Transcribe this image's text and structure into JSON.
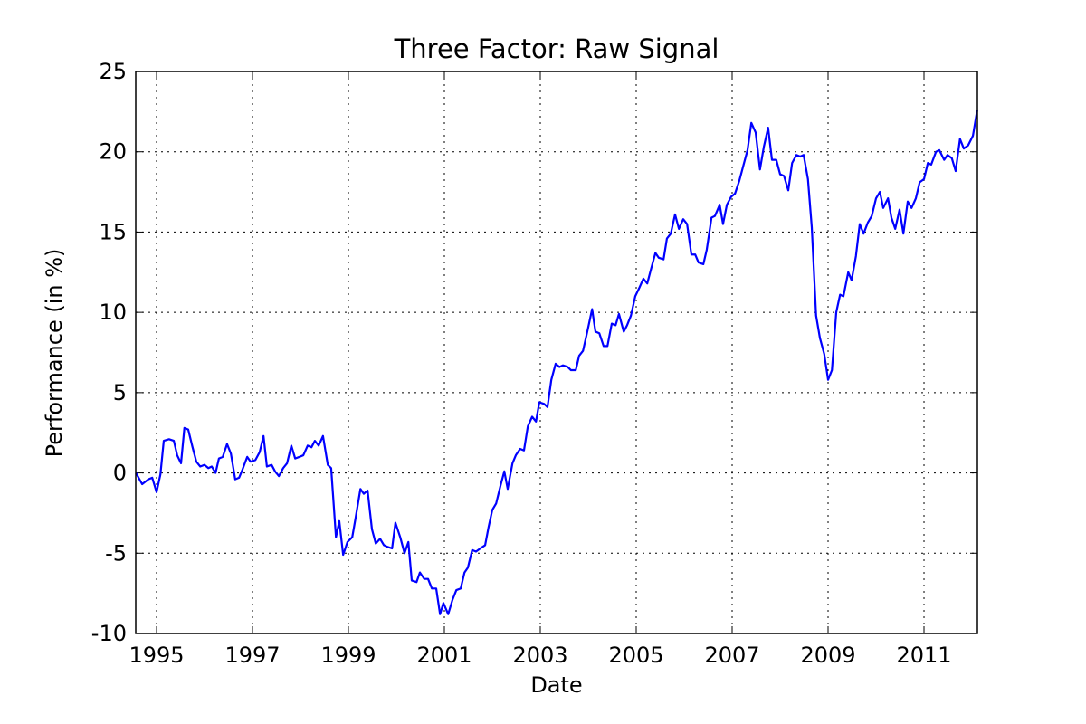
{
  "chart_data": {
    "type": "line",
    "title": "Three Factor: Raw Signal",
    "x_label": "Date",
    "y_label": "Performance (in %)",
    "x": [
      1994.57,
      1994.7,
      1994.83,
      1994.91,
      1995.0,
      1995.08,
      1995.15,
      1995.26,
      1995.36,
      1995.43,
      1995.51,
      1995.58,
      1995.66,
      1995.75,
      1995.83,
      1995.91,
      1996.0,
      1996.08,
      1996.15,
      1996.23,
      1996.3,
      1996.38,
      1996.47,
      1996.55,
      1996.64,
      1996.72,
      1996.79,
      1996.89,
      1996.96,
      1997.06,
      1997.15,
      1997.23,
      1997.3,
      1997.4,
      1997.47,
      1997.55,
      1997.64,
      1997.72,
      1997.81,
      1997.89,
      1997.98,
      1998.06,
      1998.15,
      1998.23,
      1998.3,
      1998.38,
      1998.47,
      1998.57,
      1998.64,
      1998.74,
      1998.81,
      1998.89,
      1998.98,
      1999.08,
      1999.15,
      1999.25,
      1999.32,
      1999.4,
      1999.49,
      1999.57,
      1999.66,
      1999.74,
      1999.81,
      1999.91,
      1999.98,
      2000.08,
      2000.17,
      2000.25,
      2000.32,
      2000.42,
      2000.49,
      2000.58,
      2000.66,
      2000.74,
      2000.83,
      2000.91,
      2000.98,
      2001.08,
      2001.17,
      2001.25,
      2001.34,
      2001.42,
      2001.49,
      2001.58,
      2001.66,
      2001.75,
      2001.85,
      2001.92,
      2002.0,
      2002.08,
      2002.17,
      2002.25,
      2002.32,
      2002.42,
      2002.49,
      2002.58,
      2002.66,
      2002.74,
      2002.83,
      2002.91,
      2002.98,
      2003.08,
      2003.15,
      2003.23,
      2003.32,
      2003.4,
      2003.47,
      2003.57,
      2003.64,
      2003.74,
      2003.81,
      2003.89,
      2003.98,
      2004.08,
      2004.15,
      2004.23,
      2004.32,
      2004.4,
      2004.49,
      2004.57,
      2004.64,
      2004.74,
      2004.81,
      2004.89,
      2004.98,
      2005.06,
      2005.15,
      2005.23,
      2005.3,
      2005.4,
      2005.47,
      2005.57,
      2005.64,
      2005.72,
      2005.81,
      2005.89,
      2005.98,
      2006.06,
      2006.15,
      2006.23,
      2006.3,
      2006.4,
      2006.47,
      2006.57,
      2006.64,
      2006.74,
      2006.81,
      2006.89,
      2006.98,
      2007.06,
      2007.15,
      2007.23,
      2007.32,
      2007.4,
      2007.49,
      2007.58,
      2007.66,
      2007.75,
      2007.83,
      2007.92,
      2008.0,
      2008.08,
      2008.17,
      2008.25,
      2008.34,
      2008.42,
      2008.49,
      2008.58,
      2008.66,
      2008.75,
      2008.83,
      2008.92,
      2009.0,
      2009.08,
      2009.17,
      2009.25,
      2009.32,
      2009.42,
      2009.49,
      2009.58,
      2009.66,
      2009.74,
      2009.83,
      2009.91,
      2010.0,
      2010.08,
      2010.15,
      2010.25,
      2010.32,
      2010.4,
      2010.49,
      2010.57,
      2010.66,
      2010.74,
      2010.83,
      2010.91,
      2011.0,
      2011.08,
      2011.15,
      2011.25,
      2011.32,
      2011.42,
      2011.49,
      2011.58,
      2011.66,
      2011.75,
      2011.83,
      2011.92,
      2012.02,
      2012.11
    ],
    "series": [
      {
        "color": "#0000ff",
        "values": [
          0.0,
          -0.7,
          -0.4,
          -0.3,
          -1.2,
          -0.1,
          2.0,
          2.1,
          2.0,
          1.1,
          0.6,
          2.8,
          2.7,
          1.6,
          0.7,
          0.4,
          0.5,
          0.3,
          0.4,
          0.0,
          0.9,
          1.0,
          1.8,
          1.2,
          -0.4,
          -0.3,
          0.2,
          1.0,
          0.7,
          0.8,
          1.3,
          2.3,
          0.4,
          0.5,
          0.1,
          -0.2,
          0.3,
          0.6,
          1.7,
          0.9,
          1.0,
          1.1,
          1.7,
          1.6,
          2.0,
          1.7,
          2.3,
          0.5,
          0.3,
          -4.0,
          -3.0,
          -5.1,
          -4.3,
          -4.0,
          -2.8,
          -1.0,
          -1.3,
          -1.1,
          -3.5,
          -4.4,
          -4.1,
          -4.5,
          -4.6,
          -4.7,
          -3.1,
          -4.0,
          -5.0,
          -4.3,
          -6.7,
          -6.8,
          -6.2,
          -6.6,
          -6.6,
          -7.2,
          -7.2,
          -8.8,
          -8.1,
          -8.8,
          -7.9,
          -7.3,
          -7.2,
          -6.2,
          -5.9,
          -4.8,
          -4.9,
          -4.7,
          -4.5,
          -3.4,
          -2.3,
          -1.9,
          -0.8,
          0.1,
          -1.0,
          0.6,
          1.1,
          1.5,
          1.4,
          2.9,
          3.5,
          3.2,
          4.4,
          4.3,
          4.1,
          5.8,
          6.8,
          6.6,
          6.7,
          6.6,
          6.4,
          6.4,
          7.3,
          7.6,
          8.8,
          10.2,
          8.8,
          8.7,
          7.9,
          7.9,
          9.3,
          9.2,
          9.9,
          8.8,
          9.2,
          9.8,
          11.0,
          11.5,
          12.1,
          11.8,
          12.6,
          13.7,
          13.4,
          13.3,
          14.6,
          14.9,
          16.1,
          15.2,
          15.8,
          15.5,
          13.6,
          13.6,
          13.1,
          13.0,
          13.9,
          15.9,
          16.0,
          16.7,
          15.5,
          16.7,
          17.2,
          17.4,
          18.2,
          19.1,
          20.1,
          21.8,
          21.2,
          18.9,
          20.3,
          21.5,
          19.5,
          19.5,
          18.6,
          18.5,
          17.6,
          19.3,
          19.8,
          19.7,
          19.8,
          18.3,
          15.3,
          9.8,
          8.4,
          7.4,
          5.8,
          6.4,
          10.0,
          11.1,
          11.0,
          12.5,
          12.0,
          13.5,
          15.5,
          14.9,
          15.6,
          16.0,
          17.1,
          17.5,
          16.5,
          17.1,
          15.9,
          15.2,
          16.4,
          14.9,
          16.9,
          16.5,
          17.1,
          18.1,
          18.3,
          19.3,
          19.2,
          20.0,
          20.1,
          19.5,
          19.8,
          19.6,
          18.8,
          20.8,
          20.2,
          20.4,
          21.0,
          22.6
        ]
      }
    ],
    "xlim": [
      1994.566,
      2012.113
    ],
    "xticks": [
      1995,
      1997,
      1999,
      2001,
      2003,
      2005,
      2007,
      2009,
      2011
    ],
    "ylim": [
      -10,
      25
    ],
    "yticks": [
      -10,
      -5,
      0,
      5,
      10,
      15,
      20,
      25
    ],
    "grid": true
  }
}
